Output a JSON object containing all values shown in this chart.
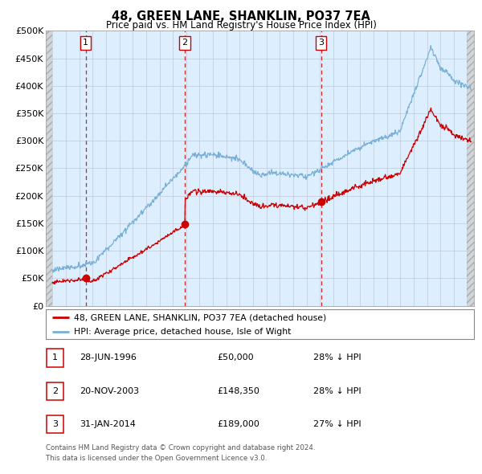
{
  "title": "48, GREEN LANE, SHANKLIN, PO37 7EA",
  "subtitle": "Price paid vs. HM Land Registry's House Price Index (HPI)",
  "legend_line1": "48, GREEN LANE, SHANKLIN, PO37 7EA (detached house)",
  "legend_line2": "HPI: Average price, detached house, Isle of Wight",
  "footer1": "Contains HM Land Registry data © Crown copyright and database right 2024.",
  "footer2": "This data is licensed under the Open Government Licence v3.0.",
  "transactions": [
    {
      "num": 1,
      "date": "28-JUN-1996",
      "price": 50000,
      "pct": "28% ↓ HPI",
      "x_year": 1996.49
    },
    {
      "num": 2,
      "date": "20-NOV-2003",
      "price": 148350,
      "pct": "28% ↓ HPI",
      "x_year": 2003.89
    },
    {
      "num": 3,
      "date": "31-JAN-2014",
      "price": 189000,
      "pct": "27% ↓ HPI",
      "x_year": 2014.08
    }
  ],
  "price_color": "#cc0000",
  "hpi_color": "#7ab0d4",
  "background_plot": "#ddeeff",
  "ylim": [
    0,
    500000
  ],
  "xlim_left": 1993.5,
  "xlim_right": 2025.5,
  "hatch_left_end": 1994.0,
  "hatch_right_start": 2025.0,
  "ylabel_ticks": [
    "£0",
    "£50K",
    "£100K",
    "£150K",
    "£200K",
    "£250K",
    "£300K",
    "£350K",
    "£400K",
    "£450K",
    "£500K"
  ],
  "ytick_vals": [
    0,
    50000,
    100000,
    150000,
    200000,
    250000,
    300000,
    350000,
    400000,
    450000,
    500000
  ]
}
